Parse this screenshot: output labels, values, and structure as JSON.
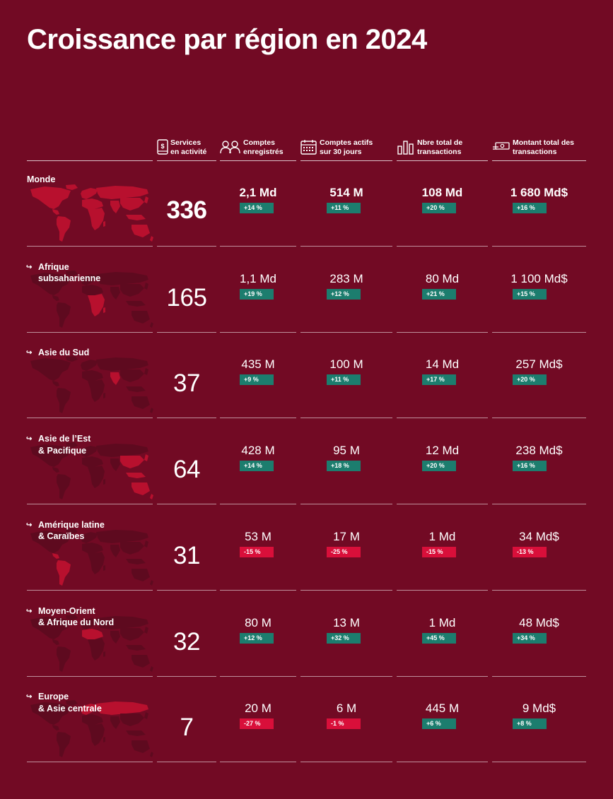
{
  "title": "Croissance par région en 2024",
  "colors": {
    "background": "#720a24",
    "positive": "#1c7d6e",
    "negative": "#d90f3a",
    "map_highlight": "#b8102e",
    "map_muted": "#5e0a1f"
  },
  "columns": [
    {
      "label": "Services\nen activité",
      "icon": "phone-dollar-icon"
    },
    {
      "label": "Comptes\nenregistrés",
      "icon": "users-icon"
    },
    {
      "label": "Comptes actifs\nsur 30 jours",
      "icon": "calendar-icon"
    },
    {
      "label": "Nbre total de\ntransactions",
      "icon": "bar-chart-icon"
    },
    {
      "label": "Montant total des\ntransactions",
      "icon": "banknote-icon"
    }
  ],
  "rows": [
    {
      "region": "Monde",
      "arrow": "",
      "services": "336",
      "metrics": [
        {
          "value": "2,1 Md",
          "change": "+14 %",
          "positive": true
        },
        {
          "value": "514 M",
          "change": "+11 %",
          "positive": true
        },
        {
          "value": "108 Md",
          "change": "+20 %",
          "positive": true
        },
        {
          "value": "1 680 Md$",
          "change": "+16 %",
          "positive": true
        }
      ]
    },
    {
      "region": "Afrique\nsubsaharienne",
      "arrow": "↪",
      "services": "165",
      "metrics": [
        {
          "value": "1,1 Md",
          "change": "+19 %",
          "positive": true
        },
        {
          "value": "283 M",
          "change": "+12 %",
          "positive": true
        },
        {
          "value": "80 Md",
          "change": "+21 %",
          "positive": true
        },
        {
          "value": "1 100 Md$",
          "change": "+15 %",
          "positive": true
        }
      ]
    },
    {
      "region": "Asie du Sud",
      "arrow": "↪",
      "services": "37",
      "metrics": [
        {
          "value": "435 M",
          "change": "+9 %",
          "positive": true
        },
        {
          "value": "100 M",
          "change": "+11 %",
          "positive": true
        },
        {
          "value": "14 Md",
          "change": "+17 %",
          "positive": true
        },
        {
          "value": "257 Md$",
          "change": "+20 %",
          "positive": true
        }
      ]
    },
    {
      "region": "Asie de l’Est\n& Pacifique",
      "arrow": "↪",
      "services": "64",
      "metrics": [
        {
          "value": "428 M",
          "change": "+14 %",
          "positive": true
        },
        {
          "value": "95 M",
          "change": "+18 %",
          "positive": true
        },
        {
          "value": "12 Md",
          "change": "+20 %",
          "positive": true
        },
        {
          "value": "238 Md$",
          "change": "+16 %",
          "positive": true
        }
      ]
    },
    {
      "region": "Amérique latine\n& Caraïbes",
      "arrow": "↪",
      "services": "31",
      "metrics": [
        {
          "value": "53 M",
          "change": "-15 %",
          "positive": false
        },
        {
          "value": "17 M",
          "change": "-25 %",
          "positive": false
        },
        {
          "value": "1 Md",
          "change": "-15 %",
          "positive": false
        },
        {
          "value": "34 Md$",
          "change": "-13 %",
          "positive": false
        }
      ]
    },
    {
      "region": "Moyen-Orient\n& Afrique du Nord",
      "arrow": "↪",
      "services": "32",
      "metrics": [
        {
          "value": "80 M",
          "change": "+12 %",
          "positive": true
        },
        {
          "value": "13 M",
          "change": "+32 %",
          "positive": true
        },
        {
          "value": "1 Md",
          "change": "+45 %",
          "positive": true
        },
        {
          "value": "48 Md$",
          "change": "+34 %",
          "positive": true
        }
      ]
    },
    {
      "region": "Europe\n& Asie centrale",
      "arrow": "↪",
      "services": "7",
      "metrics": [
        {
          "value": "20 M",
          "change": "-27 %",
          "positive": false
        },
        {
          "value": "6 M",
          "change": "-1 %",
          "positive": false
        },
        {
          "value": "445 M",
          "change": "+6 %",
          "positive": true
        },
        {
          "value": "9 Md$",
          "change": "+8 %",
          "positive": true
        }
      ]
    }
  ]
}
